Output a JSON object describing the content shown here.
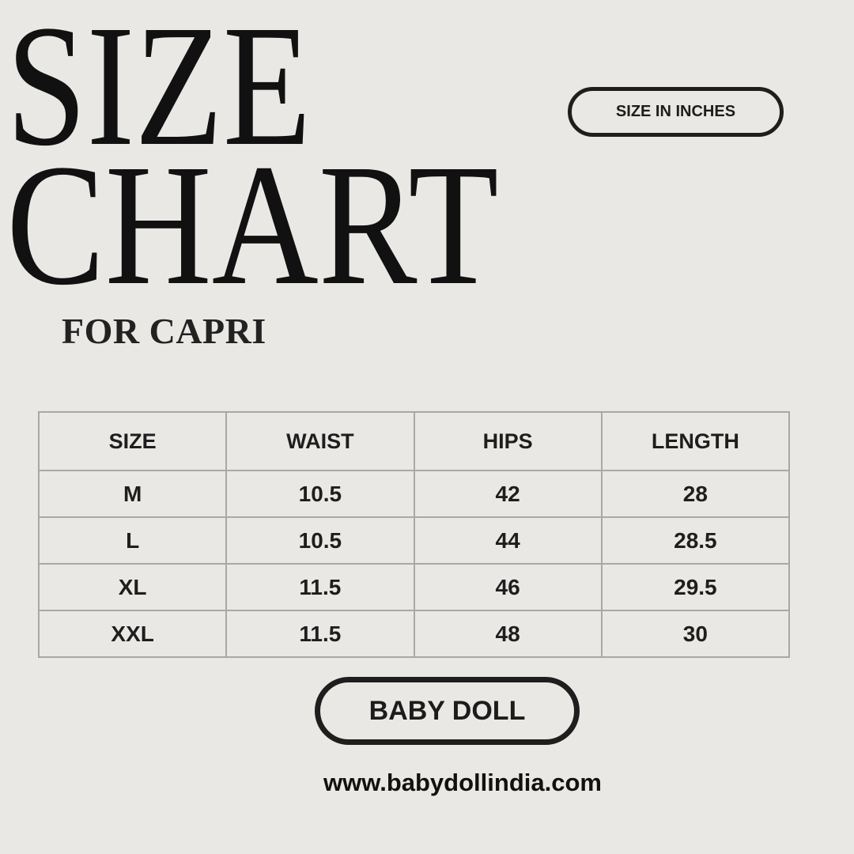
{
  "title": {
    "line1": "SIZE",
    "line2": "CHART",
    "subtitle": "FOR CAPRI"
  },
  "unit_badge": "SIZE IN INCHES",
  "table": {
    "headers": [
      "SIZE",
      "WAIST",
      "HIPS",
      "LENGTH"
    ],
    "rows": [
      [
        "M",
        "10.5",
        "42",
        "28"
      ],
      [
        "L",
        "10.5",
        "44",
        "28.5"
      ],
      [
        "XL",
        "11.5",
        "46",
        "29.5"
      ],
      [
        "XXL",
        "11.5",
        "48",
        "30"
      ]
    ]
  },
  "brand_label": "BABY DOLL",
  "website": "www.babydollindia.com",
  "colors": {
    "background": "#e9e8e4",
    "text": "#1c1c1c",
    "grid": "#a9a8a5"
  }
}
